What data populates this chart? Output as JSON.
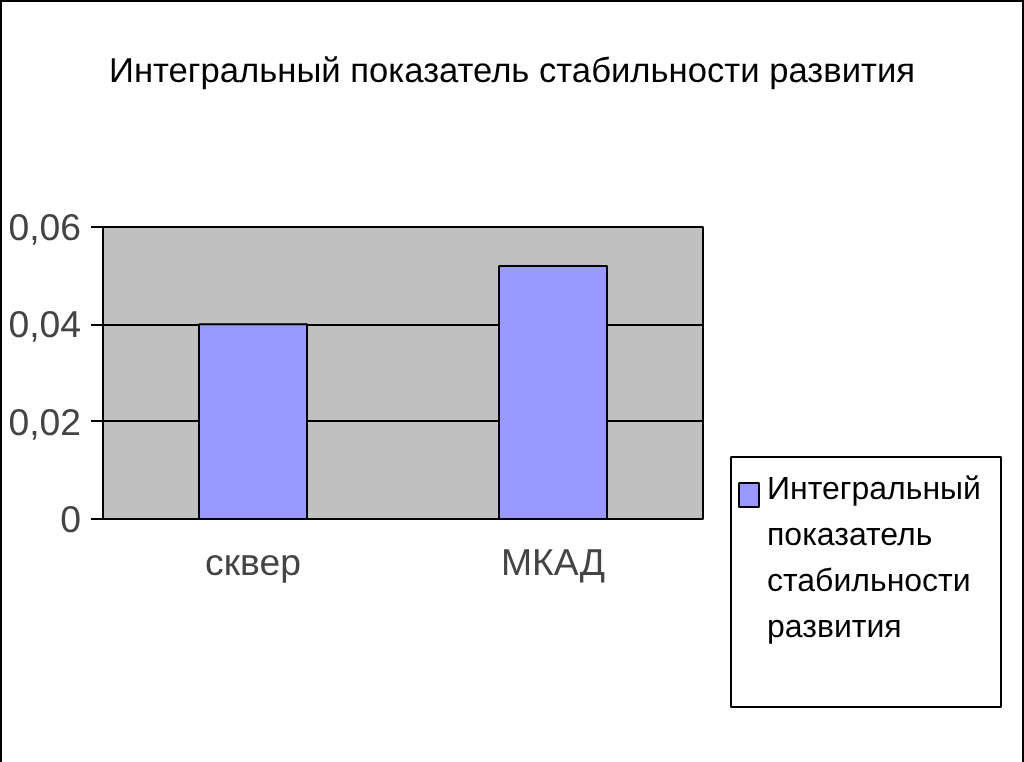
{
  "chart_data": {
    "type": "bar",
    "title": "Интегральный показатель стабильности развития",
    "categories": [
      "сквер",
      "МКАД"
    ],
    "series": [
      {
        "name": "Интегральный показатель стабильности развития",
        "color": "#9999ff",
        "values": [
          0.04,
          0.052
        ]
      }
    ],
    "ylim": [
      0,
      0.06
    ],
    "yticks": [
      {
        "value": 0,
        "label": "0"
      },
      {
        "value": 0.02,
        "label": "0,02"
      },
      {
        "value": 0.04,
        "label": "0,04"
      },
      {
        "value": 0.06,
        "label": "0,06"
      }
    ],
    "grid": "y",
    "legend": "right"
  }
}
